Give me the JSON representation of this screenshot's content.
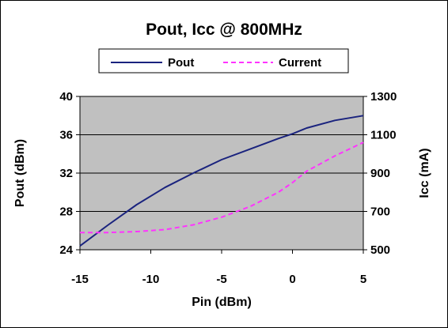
{
  "chart_data": {
    "type": "line",
    "title": "Pout, Icc @ 800MHz",
    "xlabel": "Pin  (dBm)",
    "ylabel": "Pout  (dBm)",
    "y2label": "Icc  (mA)",
    "xlim": [
      -15,
      5
    ],
    "ylim": [
      24,
      40
    ],
    "y2lim": [
      500,
      1300
    ],
    "x_ticks": [
      -15,
      -10,
      -5,
      0,
      5
    ],
    "y_ticks": [
      24,
      28,
      32,
      36,
      40
    ],
    "y2_ticks": [
      500,
      700,
      900,
      1100,
      1300
    ],
    "grid": "horizontal",
    "plot_background": "#c0c0c0",
    "legend": {
      "position": "top",
      "entries": [
        "Pout",
        "Current"
      ]
    },
    "series": [
      {
        "name": "Pout",
        "axis": "left",
        "color": "#1a237e",
        "style": "solid",
        "x": [
          -15,
          -13,
          -11,
          -9,
          -7,
          -5,
          -3,
          -1,
          0,
          1,
          3,
          5
        ],
        "y": [
          24.4,
          26.6,
          28.7,
          30.5,
          32.0,
          33.4,
          34.5,
          35.6,
          36.1,
          36.7,
          37.5,
          38.0
        ]
      },
      {
        "name": "Current",
        "axis": "right",
        "color": "#ff33ff",
        "style": "dashed",
        "x": [
          -15,
          -13,
          -11,
          -9,
          -7,
          -5,
          -3,
          -1,
          0,
          1,
          3,
          5
        ],
        "y": [
          590,
          590,
          595,
          605,
          630,
          670,
          725,
          800,
          850,
          910,
          990,
          1060
        ]
      }
    ]
  }
}
